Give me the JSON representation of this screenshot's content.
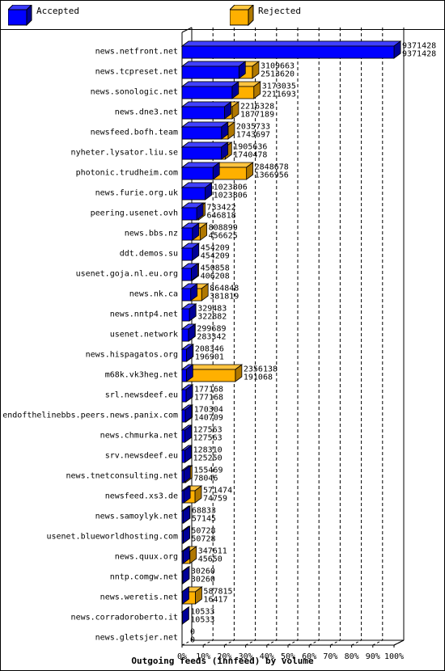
{
  "legend": {
    "accepted_label": "Accepted",
    "rejected_label": "Rejected"
  },
  "colors": {
    "accepted": "#0000ff",
    "accepted_dark": "#000099",
    "rejected": "#ffb000",
    "rejected_dark": "#b07800",
    "grid": "#000000"
  },
  "chart_data": {
    "type": "bar",
    "orientation": "horizontal",
    "title": "",
    "xlabel": "Outgoing feeds (innfeed) by volume",
    "ylabel": "",
    "xlim": [
      0,
      100
    ],
    "x_unit": "%",
    "xticks": [
      "0%",
      "10%",
      "20%",
      "30%",
      "40%",
      "50%",
      "60%",
      "70%",
      "80%",
      "90%",
      "100%"
    ],
    "grid": true,
    "legend_position": "top",
    "categories": [
      "news.netfront.net",
      "news.tcpreset.net",
      "news.sonologic.net",
      "news.dne3.net",
      "newsfeed.bofh.team",
      "nyheter.lysator.liu.se",
      "photonic.trudheim.com",
      "news.furie.org.uk",
      "peering.usenet.ovh",
      "news.bbs.nz",
      "ddt.demos.su",
      "usenet.goja.nl.eu.org",
      "news.nk.ca",
      "news.nntp4.net",
      "usenet.network",
      "news.hispagatos.org",
      "m68k.vk3heg.net",
      "srl.newsdeef.eu",
      "endofthelinebbs.peers.news.panix.com",
      "news.chmurka.net",
      "srv.newsdeef.eu",
      "news.tnetconsulting.net",
      "newsfeed.xs3.de",
      "news.samoylyk.net",
      "usenet.blueworldhosting.com",
      "news.quux.org",
      "nntp.comgw.net",
      "news.weretis.net",
      "news.corradoroberto.it",
      "news.gletsjer.net"
    ],
    "series": [
      {
        "name": "Accepted",
        "values": [
          9371428,
          2513620,
          2211693,
          1877189,
          1743697,
          1740478,
          1366956,
          1023806,
          646818,
          456625,
          454209,
          406208,
          381819,
          322882,
          283342,
          196901,
          191068,
          177168,
          140709,
          127563,
          125250,
          78046,
          74759,
          57145,
          50728,
          45650,
          30260,
          16417,
          10533,
          0
        ]
      },
      {
        "name": "Rejected",
        "values": [
          9371428,
          3109663,
          3173035,
          2216328,
          2035733,
          1905636,
          2848678,
          1023806,
          733422,
          808899,
          454209,
          450858,
          864848,
          329483,
          299689,
          208346,
          2356138,
          177168,
          170304,
          127563,
          128310,
          155469,
          571474,
          68833,
          50728,
          347611,
          30260,
          587815,
          10533,
          0
        ]
      }
    ],
    "max_value": 9371428
  }
}
